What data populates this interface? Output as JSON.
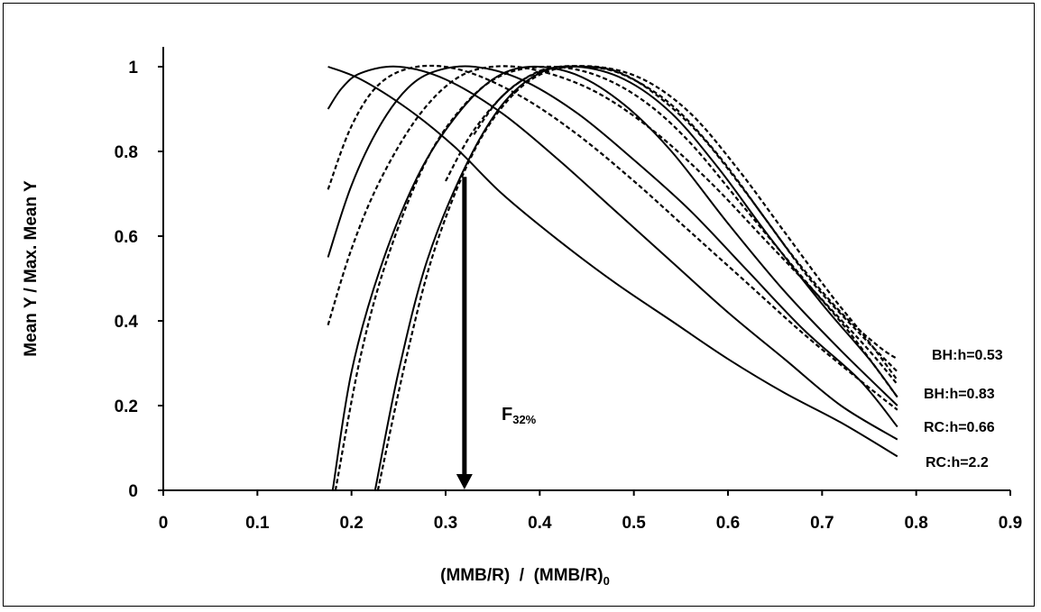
{
  "chart_data": {
    "type": "line",
    "xlabel": "(MMB/R)  /  (MMB/R)",
    "xlabel_sub": "0",
    "ylabel": "Mean Y / Max. Mean Y",
    "xlim": [
      0,
      0.9
    ],
    "ylim": [
      0,
      1
    ],
    "xticks": [
      "0",
      "0.1",
      "0.2",
      "0.3",
      "0.4",
      "0.5",
      "0.6",
      "0.7",
      "0.8",
      "0.9"
    ],
    "yticks": [
      "0",
      "0.2",
      "0.4",
      "0.6",
      "0.8",
      "1"
    ],
    "grid": false,
    "annotation": {
      "text": "F",
      "sub": "32%",
      "arrow_x": 0.32,
      "arrow_from_y": 0.74,
      "arrow_to_y": 0
    },
    "curve_labels": [
      "BH:h=0.53",
      "BH:h=0.83",
      "RC:h=0.66",
      "RC:h=2.2"
    ],
    "series": [
      {
        "style": "solid",
        "x": [
          0.175,
          0.21,
          0.26,
          0.31,
          0.36,
          0.42,
          0.48,
          0.54,
          0.6,
          0.66,
          0.72,
          0.78
        ],
        "y": [
          1.0,
          0.97,
          0.9,
          0.81,
          0.7,
          0.59,
          0.49,
          0.4,
          0.31,
          0.23,
          0.16,
          0.08
        ]
      },
      {
        "style": "solid",
        "x": [
          0.175,
          0.19,
          0.21,
          0.25,
          0.3,
          0.36,
          0.42,
          0.48,
          0.54,
          0.6,
          0.66,
          0.72,
          0.78
        ],
        "y": [
          0.9,
          0.95,
          0.985,
          1.0,
          0.97,
          0.89,
          0.78,
          0.66,
          0.54,
          0.42,
          0.31,
          0.2,
          0.12
        ]
      },
      {
        "style": "dashed",
        "x": [
          0.175,
          0.2,
          0.23,
          0.27,
          0.32,
          0.38,
          0.44,
          0.5,
          0.56,
          0.62,
          0.68,
          0.74,
          0.78
        ],
        "y": [
          0.71,
          0.86,
          0.96,
          1.0,
          0.99,
          0.93,
          0.84,
          0.73,
          0.61,
          0.49,
          0.37,
          0.26,
          0.19
        ]
      },
      {
        "style": "solid",
        "x": [
          0.175,
          0.2,
          0.23,
          0.26,
          0.29,
          0.33,
          0.38,
          0.44,
          0.5,
          0.56,
          0.62,
          0.68,
          0.74,
          0.78
        ],
        "y": [
          0.55,
          0.72,
          0.86,
          0.95,
          0.99,
          1.0,
          0.97,
          0.89,
          0.78,
          0.66,
          0.52,
          0.38,
          0.26,
          0.15
        ]
      },
      {
        "style": "dashed",
        "x": [
          0.175,
          0.2,
          0.23,
          0.27,
          0.31,
          0.35,
          0.4,
          0.46,
          0.52,
          0.58,
          0.64,
          0.7,
          0.75,
          0.78
        ],
        "y": [
          0.39,
          0.57,
          0.73,
          0.88,
          0.97,
          1.0,
          0.99,
          0.94,
          0.85,
          0.73,
          0.59,
          0.45,
          0.33,
          0.25
        ]
      },
      {
        "style": "solid",
        "x": [
          0.18,
          0.2,
          0.23,
          0.27,
          0.31,
          0.35,
          0.39,
          0.44,
          0.49,
          0.54,
          0.6,
          0.66,
          0.72,
          0.78
        ],
        "y": [
          0.0,
          0.28,
          0.52,
          0.74,
          0.88,
          0.97,
          1.0,
          0.98,
          0.91,
          0.8,
          0.63,
          0.47,
          0.33,
          0.2
        ]
      },
      {
        "style": "dashed",
        "x": [
          0.183,
          0.21,
          0.24,
          0.28,
          0.32,
          0.36,
          0.41,
          0.46,
          0.51,
          0.56,
          0.62,
          0.68,
          0.73,
          0.78
        ],
        "y": [
          0.0,
          0.32,
          0.56,
          0.78,
          0.91,
          0.98,
          1.0,
          0.98,
          0.92,
          0.82,
          0.66,
          0.5,
          0.37,
          0.22
        ]
      },
      {
        "style": "solid",
        "x": [
          0.225,
          0.25,
          0.28,
          0.32,
          0.36,
          0.4,
          0.44,
          0.49,
          0.54,
          0.59,
          0.64,
          0.7,
          0.75,
          0.78
        ],
        "y": [
          0.0,
          0.28,
          0.54,
          0.76,
          0.91,
          0.985,
          1.0,
          0.97,
          0.89,
          0.76,
          0.61,
          0.44,
          0.31,
          0.22
        ]
      },
      {
        "style": "dashed",
        "x": [
          0.228,
          0.26,
          0.29,
          0.33,
          0.37,
          0.41,
          0.46,
          0.51,
          0.56,
          0.61,
          0.66,
          0.71,
          0.75,
          0.78
        ],
        "y": [
          0.0,
          0.33,
          0.58,
          0.8,
          0.93,
          0.99,
          1.0,
          0.97,
          0.89,
          0.76,
          0.61,
          0.46,
          0.35,
          0.26
        ]
      },
      {
        "style": "dashed",
        "x": [
          0.3,
          0.33,
          0.37,
          0.41,
          0.45,
          0.49,
          0.54,
          0.59,
          0.64,
          0.69,
          0.74,
          0.78
        ],
        "y": [
          0.73,
          0.85,
          0.95,
          0.995,
          1.0,
          0.98,
          0.91,
          0.79,
          0.64,
          0.49,
          0.37,
          0.28
        ]
      },
      {
        "style": "dashed",
        "x": [
          0.33,
          0.36,
          0.4,
          0.44,
          0.48,
          0.52,
          0.57,
          0.62,
          0.67,
          0.72,
          0.76,
          0.78
        ],
        "y": [
          0.84,
          0.93,
          0.99,
          1.0,
          0.99,
          0.94,
          0.84,
          0.7,
          0.55,
          0.42,
          0.34,
          0.31
        ]
      }
    ]
  }
}
